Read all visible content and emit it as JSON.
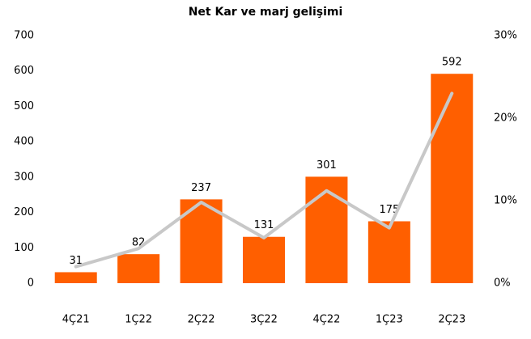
{
  "chart_data": {
    "type": "bar",
    "title": "Net Kar ve marj gelişimi",
    "categories": [
      "4Ç21",
      "1Ç22",
      "2Ç22",
      "3Ç22",
      "4Ç22",
      "1Ç23",
      "2Ç23"
    ],
    "series": [
      {
        "type": "bar",
        "color": "#ff5f00",
        "values": [
          31,
          82,
          237,
          131,
          301,
          175,
          592
        ]
      },
      {
        "type": "line",
        "axis": "y2",
        "color": "#c8c8c8",
        "values": [
          2.0,
          4.2,
          9.8,
          5.5,
          11.2,
          6.7,
          23.0
        ]
      }
    ],
    "ylim": [
      0,
      700
    ],
    "yticks": [
      0,
      100,
      200,
      300,
      400,
      500,
      600,
      700
    ],
    "y2lim": [
      0,
      30
    ],
    "y2ticks": [
      {
        "value": 0,
        "label": "0%"
      },
      {
        "value": 10,
        "label": "10%"
      },
      {
        "value": 20,
        "label": "20%"
      },
      {
        "value": 30,
        "label": "30%"
      }
    ],
    "grid": false
  }
}
